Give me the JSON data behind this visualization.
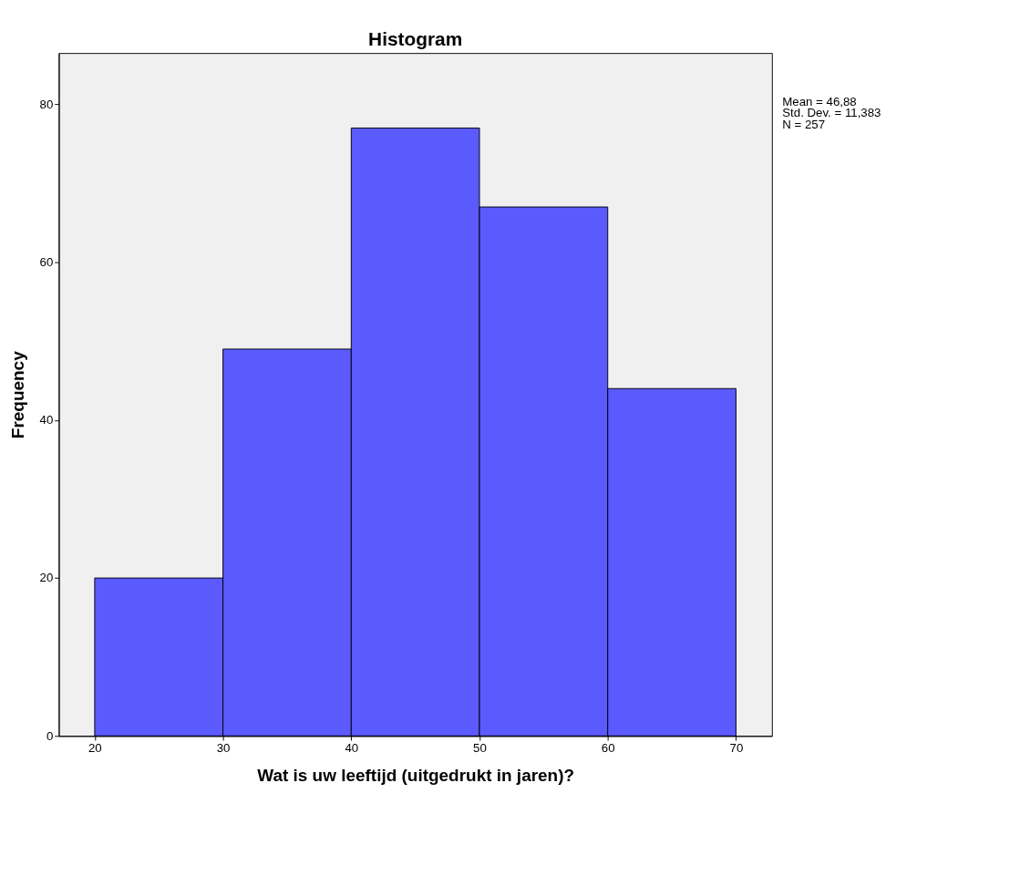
{
  "chart_data": {
    "type": "histogram",
    "title": "Histogram",
    "xlabel": "Wat is uw leeftijd (uitgedrukt in jaren)?",
    "ylabel": "Frequency",
    "bins": [
      20,
      30,
      40,
      50,
      60,
      70
    ],
    "values": [
      20,
      49,
      77,
      67,
      44
    ],
    "color": "#5a5aff",
    "xlim": [
      17.2,
      72.8
    ],
    "xticks": [
      20,
      30,
      40,
      50,
      60,
      70
    ],
    "ylim": [
      0,
      86.5
    ],
    "yticks": [
      0,
      20,
      40,
      60,
      80
    ],
    "grid": false,
    "annotations": [
      "Mean = 46,88",
      "Std. Dev. = 11,383",
      "N = 257"
    ]
  }
}
